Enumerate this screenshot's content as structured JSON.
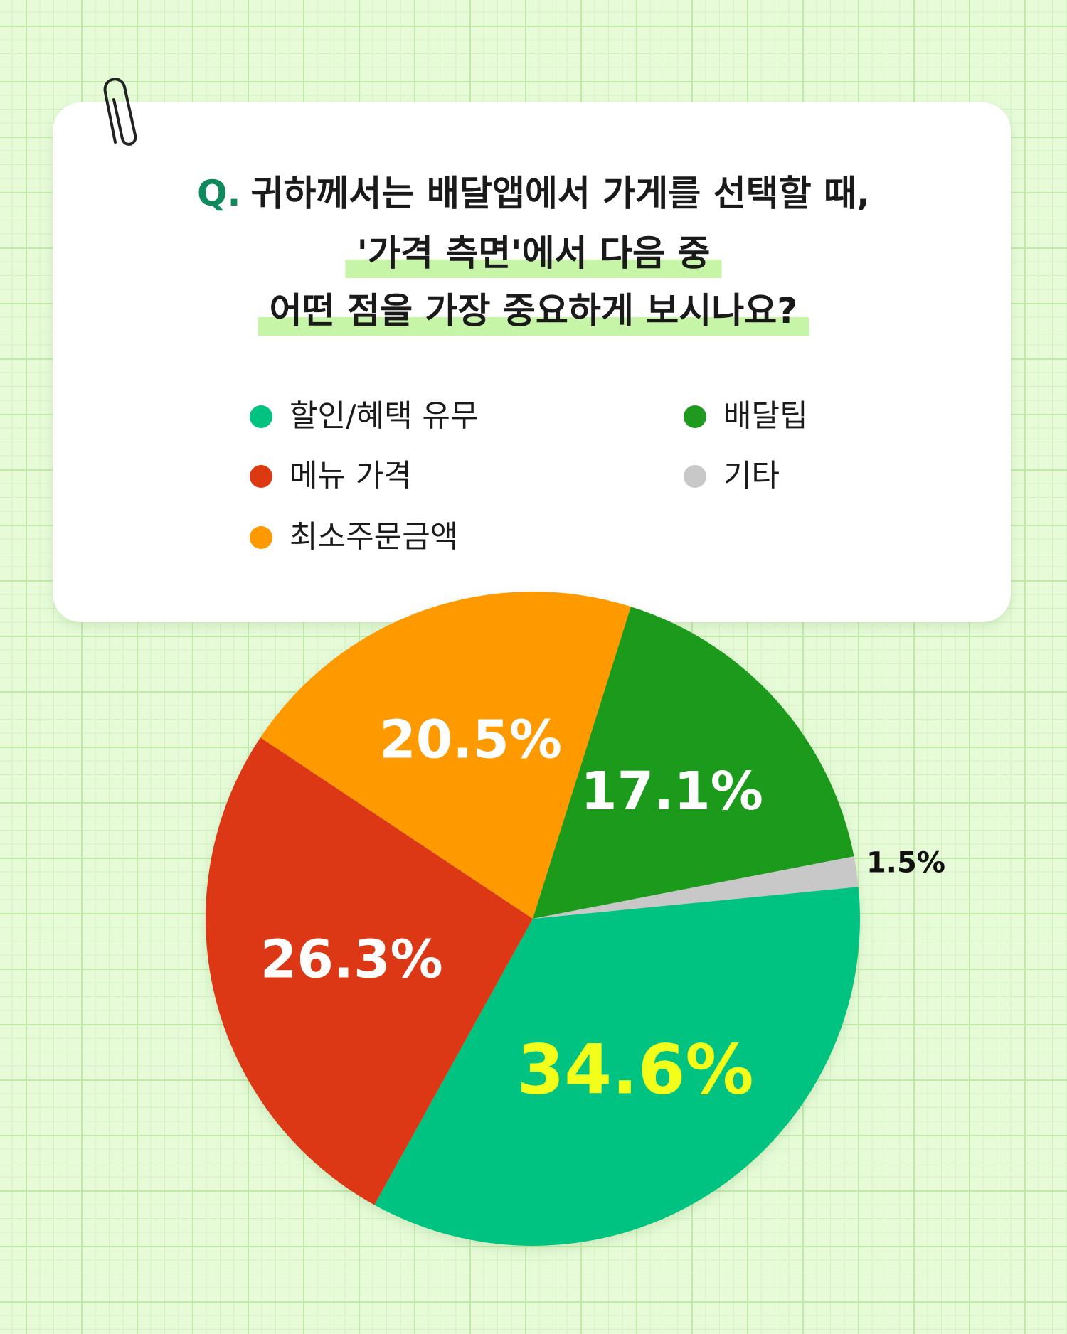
{
  "chart_data": {
    "type": "pie",
    "question_prefix": "Q.",
    "title_lines": [
      "귀하께서는 배달앱에서 가게를 선택할 때,",
      "'가격 측면'에서 다음 중",
      "어떤 점을 가장 중요하게 보시나요?"
    ],
    "categories": [
      "할인/혜택 유무",
      "메뉴 가격",
      "최소주문금액",
      "배달팁",
      "기타"
    ],
    "values": [
      34.6,
      26.3,
      20.5,
      17.1,
      1.5
    ],
    "value_labels": [
      "34.6%",
      "26.3%",
      "20.5%",
      "17.1%",
      "1.5%"
    ],
    "colors": [
      "#00c281",
      "#dc3812",
      "#ff9900",
      "#1f9a1f",
      "#c8c8c8"
    ]
  }
}
